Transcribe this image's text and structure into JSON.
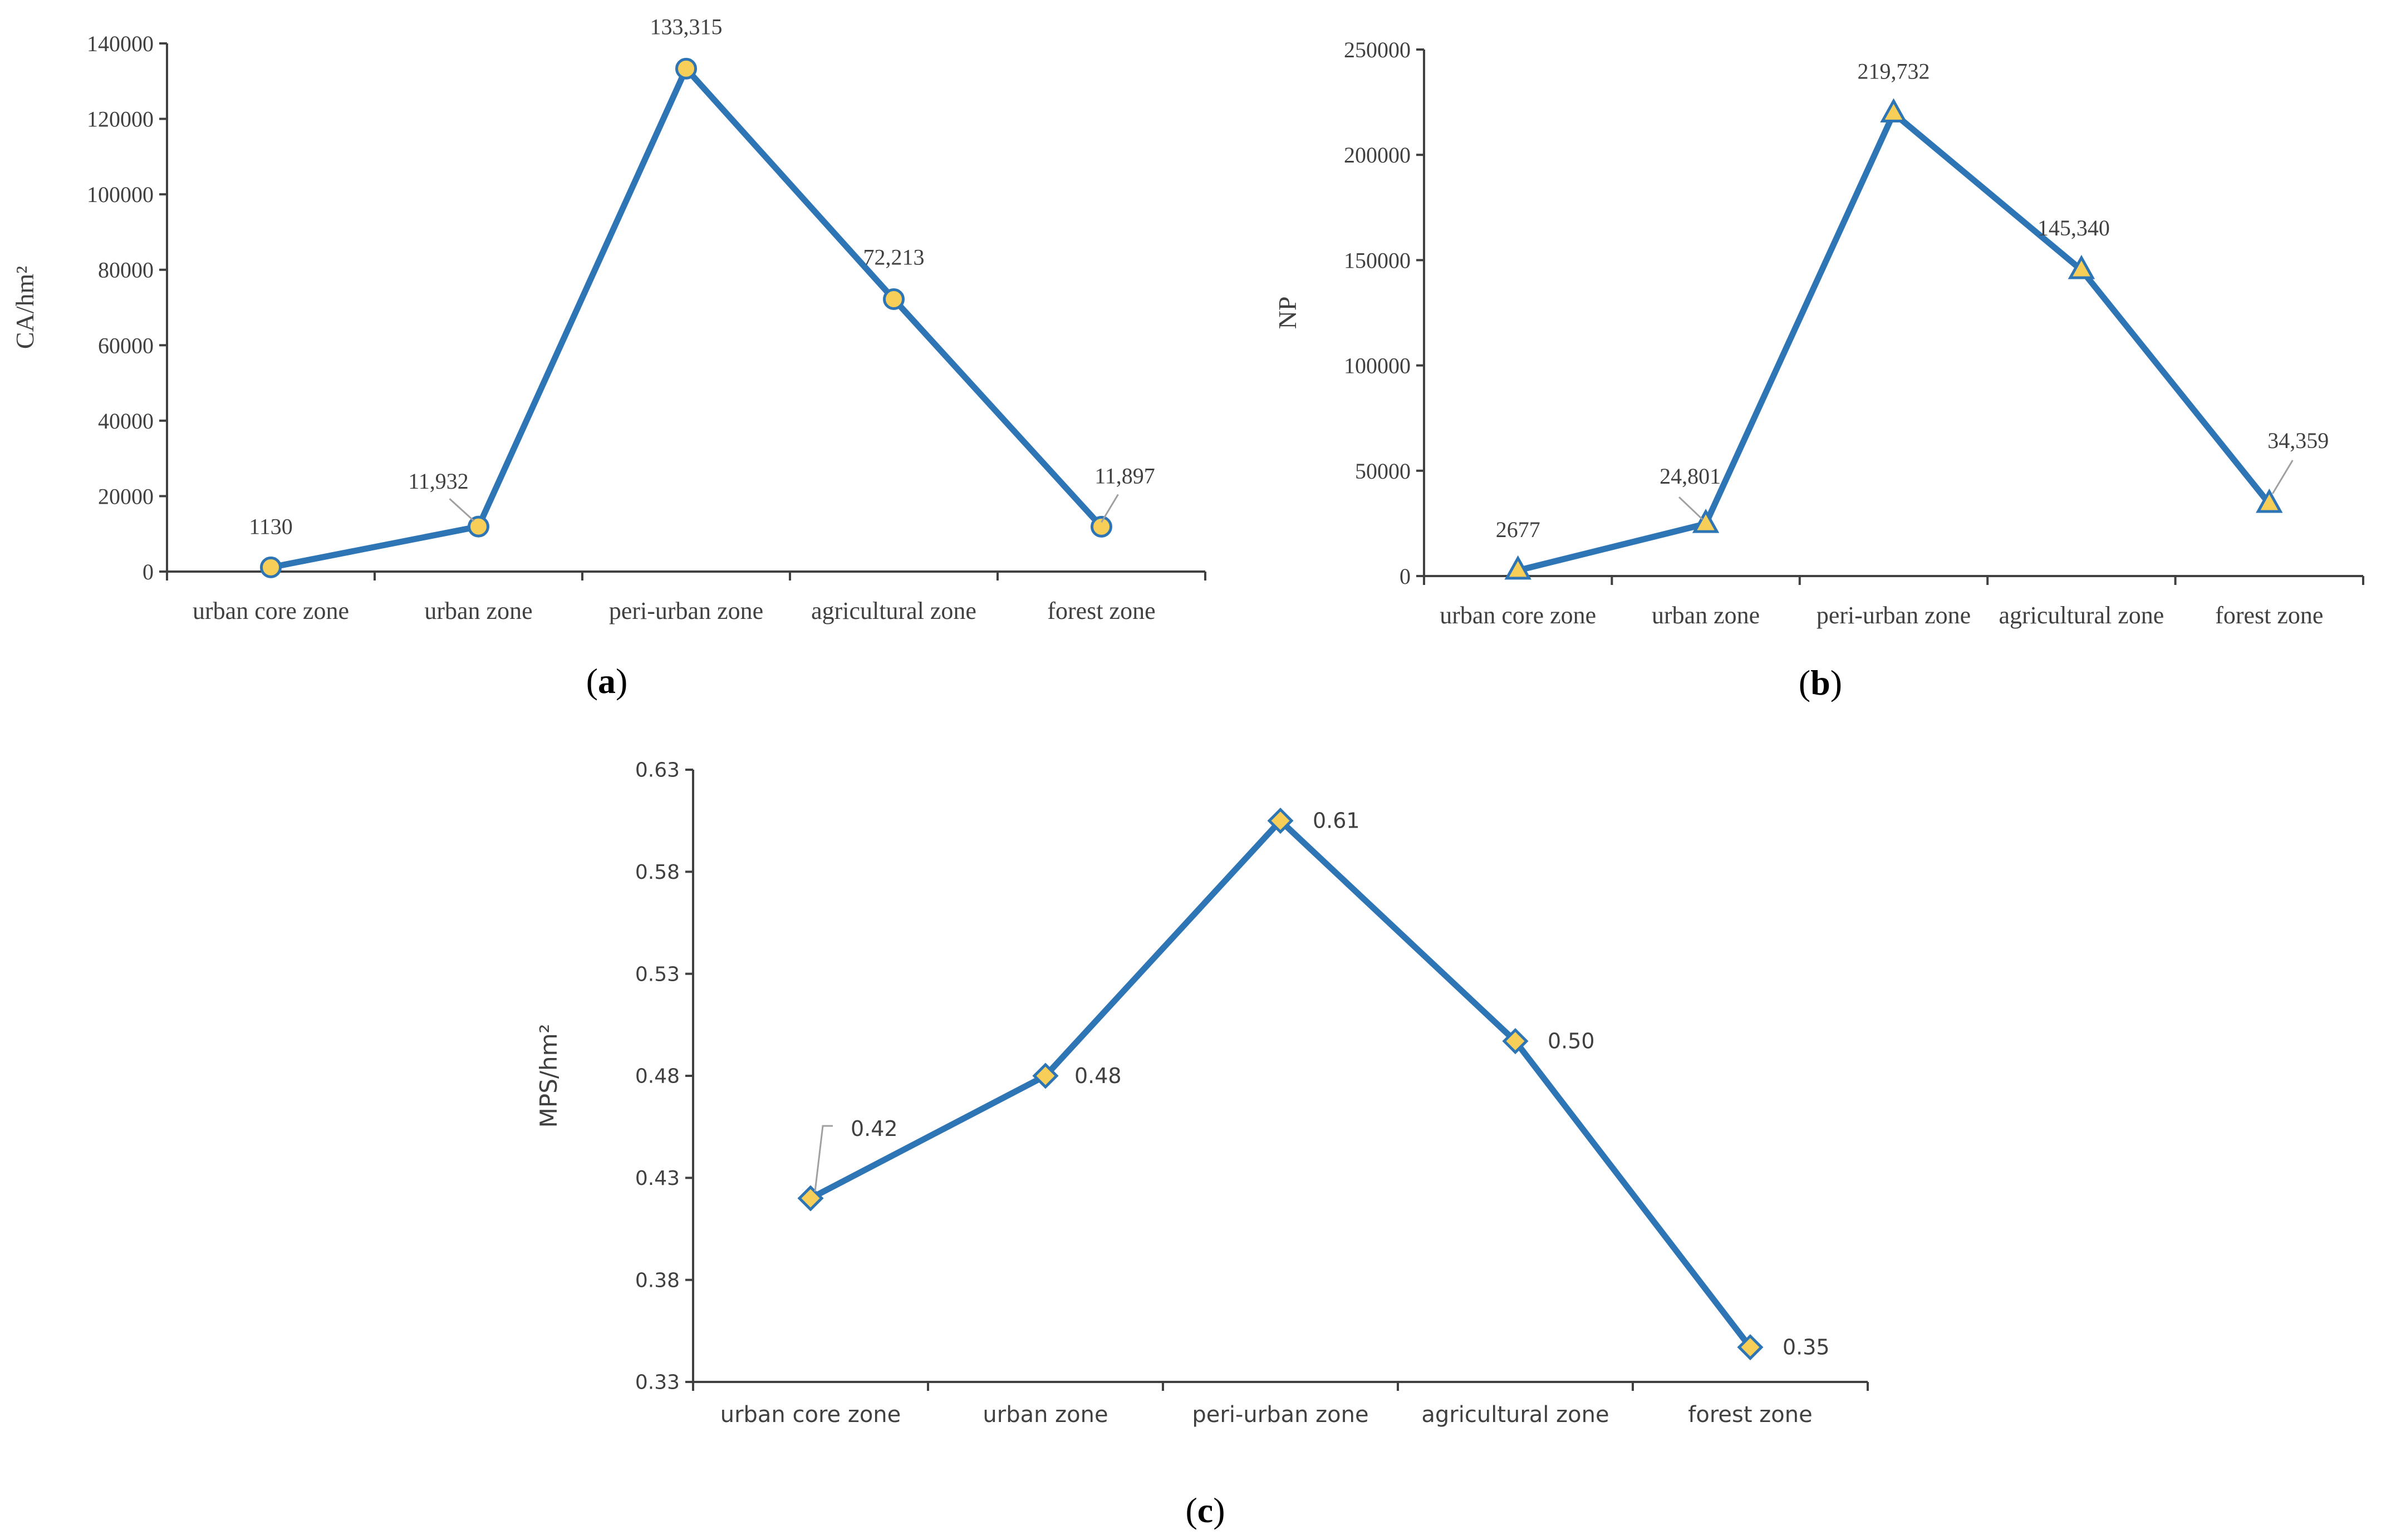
{
  "colors": {
    "line": "#2E75B6",
    "marker_fill": "#F7CF58",
    "axis": "#404040",
    "text": "#404040"
  },
  "chart_data": [
    {
      "panel": "(a)",
      "panel_letter": "a",
      "type": "line",
      "marker": "circle",
      "ylabel": "CA/hm²",
      "ylim": [
        0,
        140000
      ],
      "yticks": [
        "0",
        "20000",
        "40000",
        "60000",
        "80000",
        "100000",
        "120000",
        "140000"
      ],
      "categories": [
        "urban core zone",
        "urban zone",
        "peri-urban zone",
        "agricultural zone",
        "forest zone"
      ],
      "values": [
        1130,
        11932,
        133315,
        72213,
        11897
      ],
      "data_labels": [
        "1130",
        "11,932",
        "133,315",
        "72,213",
        "11,897"
      ]
    },
    {
      "panel": "(b)",
      "panel_letter": "b",
      "type": "line",
      "marker": "triangle",
      "ylabel": "NP",
      "ylim": [
        0,
        250000
      ],
      "yticks": [
        "0",
        "50000",
        "100000",
        "150000",
        "200000",
        "250000"
      ],
      "categories": [
        "urban core zone",
        "urban zone",
        "peri-urban zone",
        "agricultural zone",
        "forest zone"
      ],
      "values": [
        2677,
        24801,
        219732,
        145340,
        34359
      ],
      "data_labels": [
        "2677",
        "24,801",
        "219,732",
        "145,340",
        "34,359"
      ]
    },
    {
      "panel": "(c)",
      "panel_letter": "c",
      "type": "line",
      "marker": "diamond",
      "ylabel": "MPS/hm²",
      "ylim": [
        0.33,
        0.63
      ],
      "yticks": [
        "0.33",
        "0.38",
        "0.43",
        "0.48",
        "0.53",
        "0.58",
        "0.63"
      ],
      "categories": [
        "urban core zone",
        "urban zone",
        "peri-urban zone",
        "agricultural zone",
        "forest zone"
      ],
      "values": [
        0.42,
        0.48,
        0.605,
        0.497,
        0.347
      ],
      "data_labels": [
        "0.42",
        "0.48",
        "0.61",
        "0.50",
        "0.35"
      ]
    }
  ]
}
